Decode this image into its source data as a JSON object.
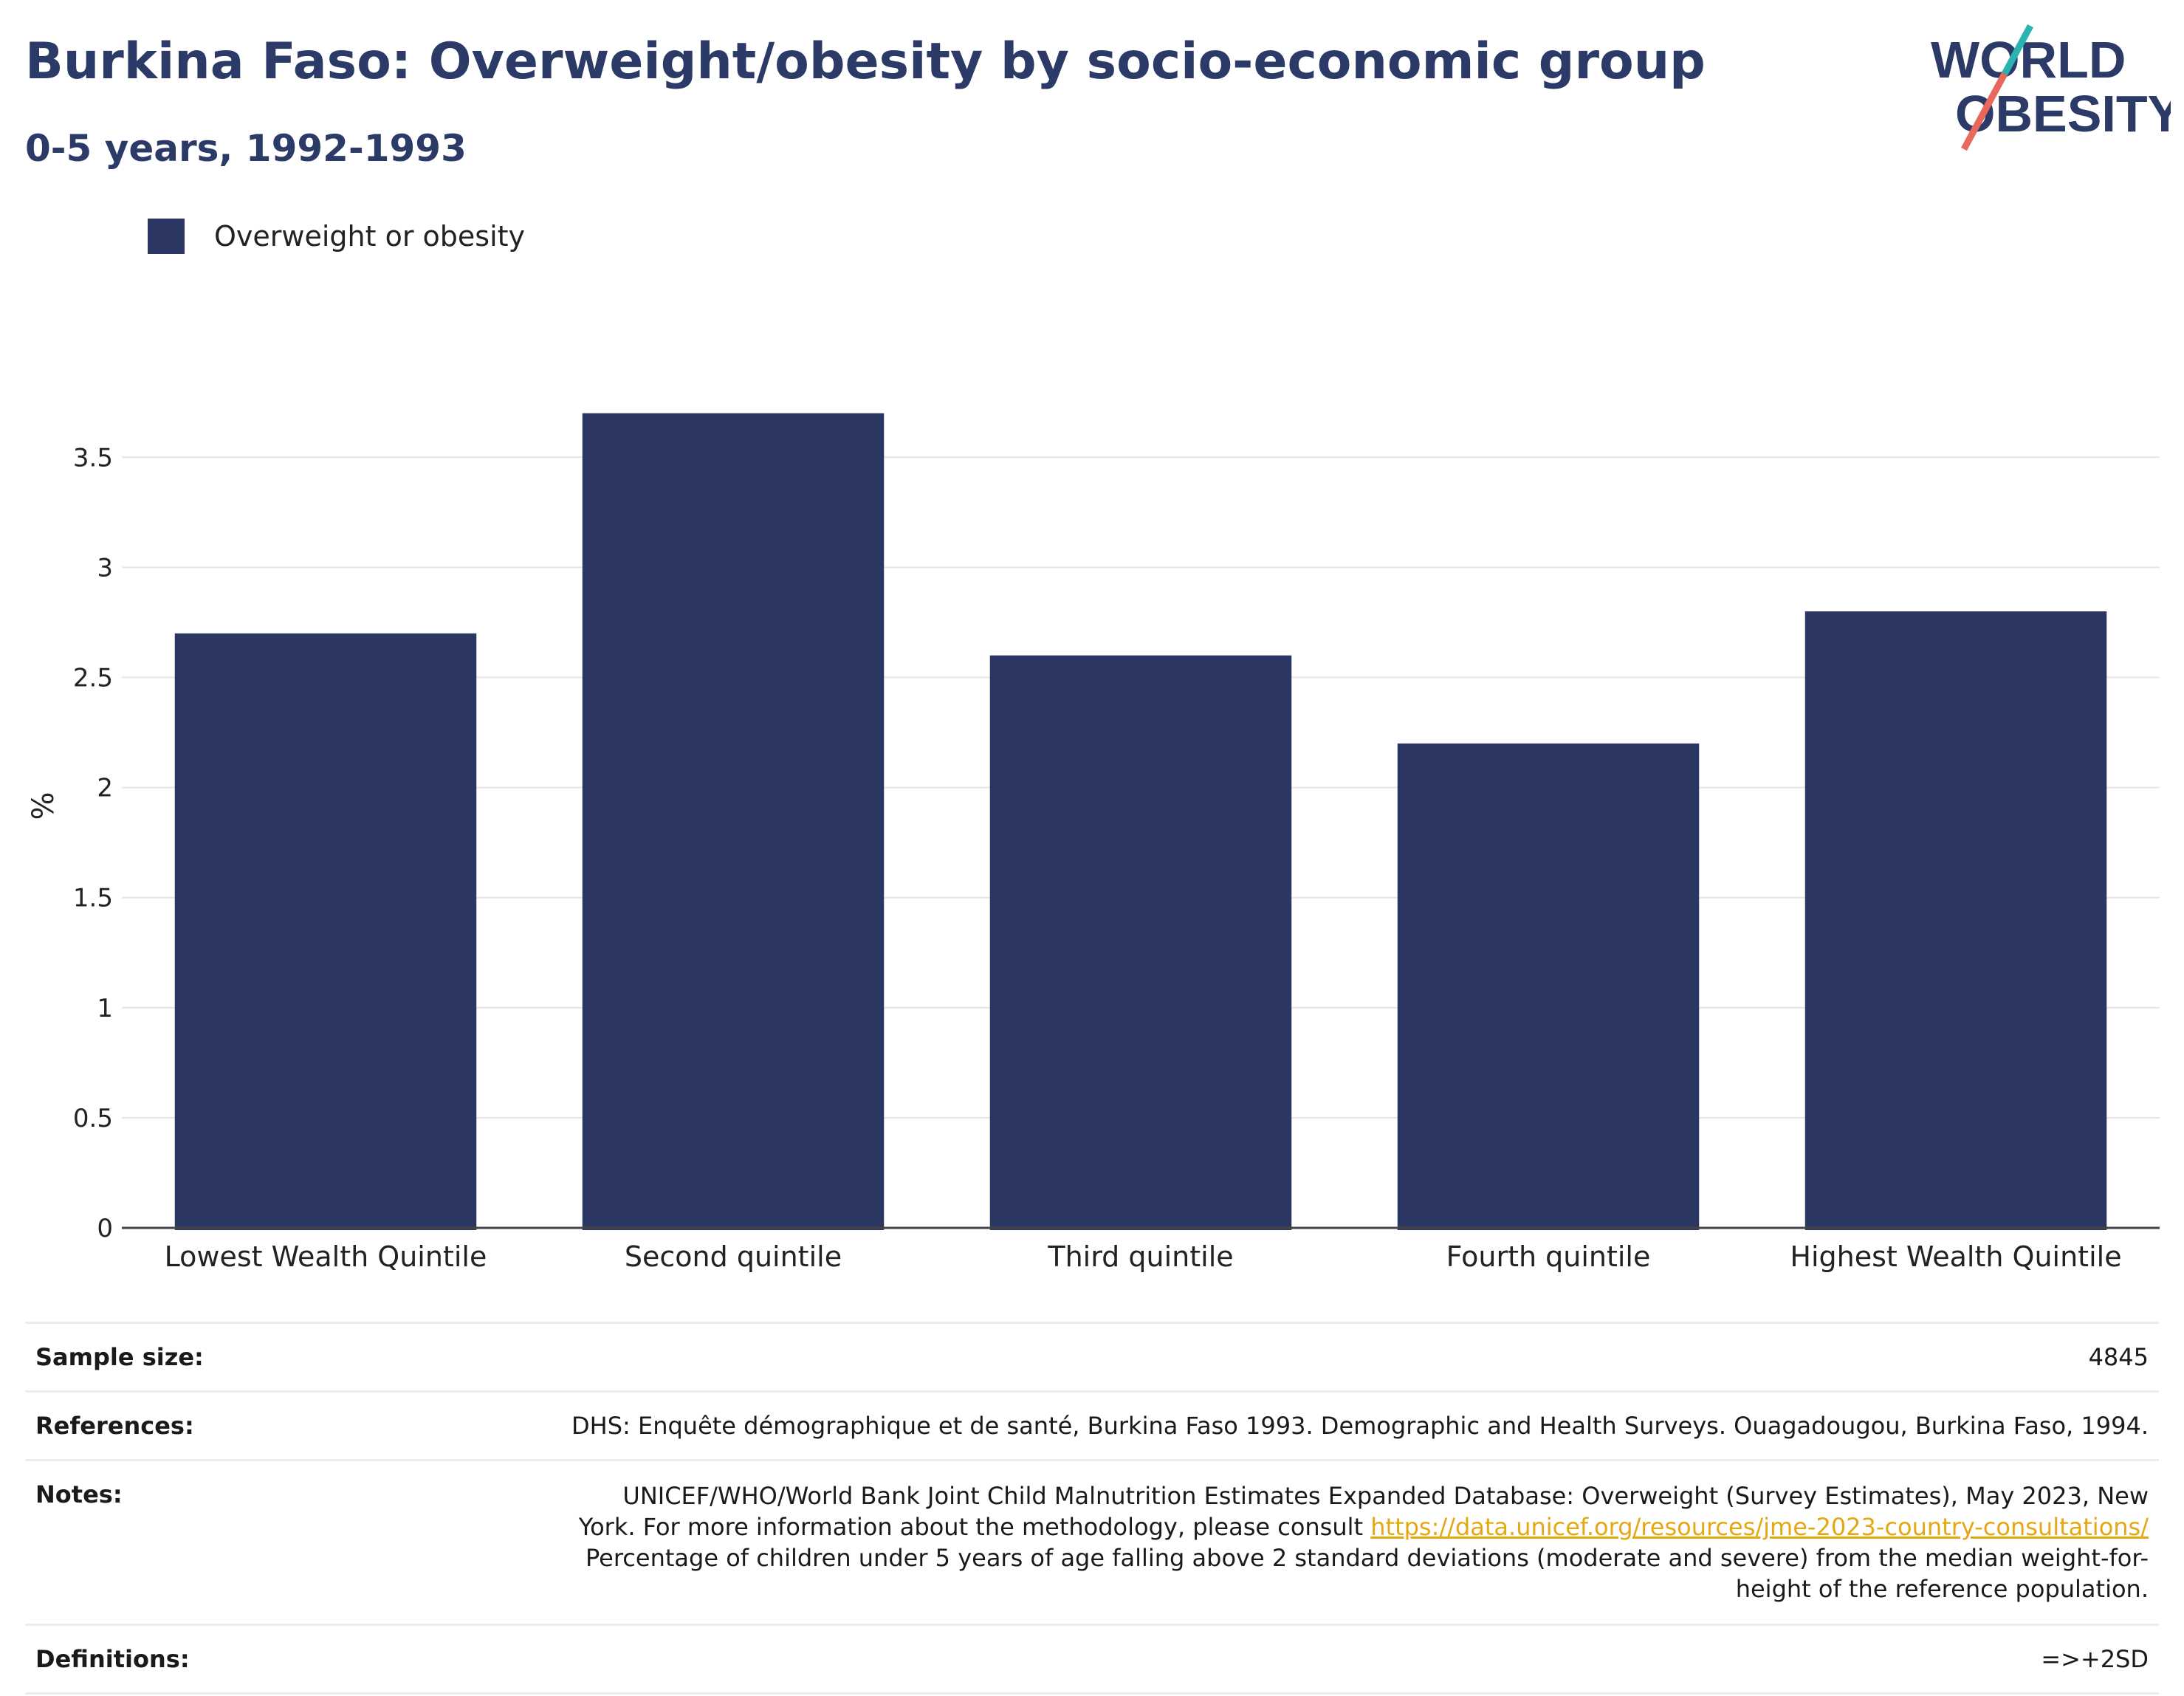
{
  "header": {
    "title": "Burkina Faso: Overweight/obesity by socio-economic group",
    "subtitle": "0-5 years, 1992-1993",
    "logo_line1": "WORLD",
    "logo_line2": "OBESITY"
  },
  "legend": {
    "label": "Overweight or obesity"
  },
  "colors": {
    "bar": "#2b3663",
    "title": "#2b3a67",
    "logo_teal": "#2bb3b1",
    "logo_coral": "#e8695c",
    "link": "#e5a812"
  },
  "chart_data": {
    "type": "bar",
    "categories": [
      "Lowest Wealth Quintile",
      "Second quintile",
      "Third quintile",
      "Fourth quintile",
      "Highest Wealth Quintile"
    ],
    "series": [
      {
        "name": "Overweight or obesity",
        "values": [
          2.7,
          3.7,
          2.6,
          2.2,
          2.8
        ]
      }
    ],
    "ylabel": "%",
    "ylim": [
      0,
      3.9
    ],
    "yticks": [
      0,
      0.5,
      1,
      1.5,
      2,
      2.5,
      3,
      3.5
    ],
    "ytick_labels": [
      "0",
      "0.5",
      "1",
      "1.5",
      "2",
      "2.5",
      "3",
      "3.5"
    ],
    "grid": true,
    "legend_position": "top-left"
  },
  "table": {
    "sample_size_label": "Sample size:",
    "sample_size_value": "4845",
    "references_label": "References:",
    "references_value": "DHS: Enquête démographique et de santé, Burkina Faso 1993. Demographic and Health Surveys. Ouagadougou, Burkina Faso, 1994.",
    "notes_label": "Notes:",
    "notes_line1": "UNICEF/WHO/World Bank Joint Child Malnutrition Estimates Expanded Database: Overweight (Survey Estimates), May 2023, New",
    "notes_line2_prefix": "York. For more information about the methodology, please consult ",
    "notes_link": "https://data.unicef.org/resources/jme-2023-country-consultations/",
    "notes_line3": "Percentage of children under 5 years of age falling above 2 standard deviations (moderate and severe) from the median weight-for-",
    "notes_line4": "height of the reference population.",
    "definitions_label": "Definitions:",
    "definitions_value": "=>+2SD"
  }
}
